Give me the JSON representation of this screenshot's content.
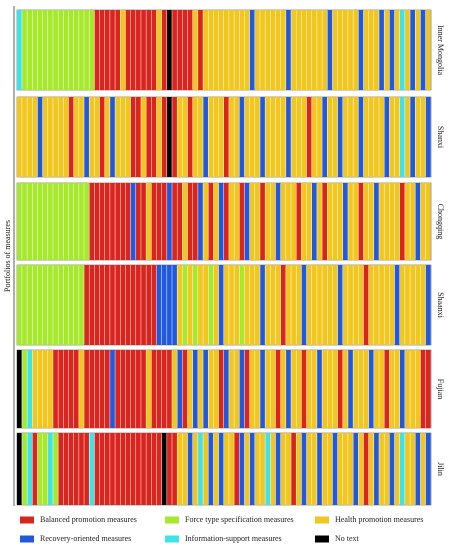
{
  "chart_data": {
    "type": "stripes",
    "y_label": "Portfolios of measures",
    "legend": [
      {
        "name": "Balanced promotion measures",
        "color": "#d9251d"
      },
      {
        "name": "Force type specification measures",
        "color": "#a6e82c"
      },
      {
        "name": "Health promotion measures",
        "color": "#f1c61e"
      },
      {
        "name": "Recovery-oriented measures",
        "color": "#2059df"
      },
      {
        "name": "Information-support measures",
        "color": "#3fe2e8"
      },
      {
        "name": "No text",
        "color": "#000000"
      }
    ],
    "panels": [
      {
        "name": "Inner Mongolia",
        "values": [
          4,
          1,
          1,
          1,
          1,
          1,
          1,
          1,
          1,
          1,
          1,
          1,
          1,
          1,
          1,
          0,
          0,
          0,
          0,
          0,
          2,
          0,
          0,
          0,
          0,
          0,
          0,
          2,
          0,
          5,
          0,
          0,
          0,
          0,
          2,
          0,
          2,
          2,
          2,
          2,
          2,
          2,
          2,
          2,
          2,
          3,
          2,
          2,
          2,
          2,
          2,
          2,
          3,
          2,
          2,
          2,
          2,
          2,
          2,
          2,
          3,
          2,
          2,
          2,
          2,
          2,
          3,
          2,
          2,
          2,
          3,
          2,
          3,
          2,
          4,
          2,
          3,
          2,
          3,
          2
        ]
      },
      {
        "name": "Shanxi",
        "values": [
          2,
          2,
          2,
          2,
          3,
          2,
          2,
          2,
          2,
          2,
          0,
          2,
          2,
          3,
          2,
          2,
          0,
          2,
          3,
          2,
          2,
          2,
          0,
          0,
          2,
          0,
          0,
          2,
          0,
          5,
          0,
          2,
          2,
          0,
          2,
          2,
          3,
          2,
          2,
          2,
          0,
          2,
          2,
          3,
          2,
          2,
          2,
          3,
          2,
          2,
          2,
          2,
          3,
          2,
          2,
          2,
          0,
          2,
          2,
          3,
          2,
          2,
          3,
          2,
          2,
          2,
          3,
          2,
          2,
          2,
          2,
          3,
          2,
          2,
          4,
          2,
          3,
          2,
          2,
          3
        ]
      },
      {
        "name": "Chongqing",
        "values": [
          1,
          1,
          1,
          1,
          1,
          1,
          1,
          1,
          1,
          1,
          1,
          1,
          1,
          1,
          0,
          0,
          0,
          0,
          0,
          0,
          0,
          0,
          3,
          0,
          0,
          2,
          0,
          0,
          0,
          3,
          0,
          0,
          2,
          0,
          0,
          3,
          2,
          0,
          2,
          3,
          0,
          2,
          2,
          0,
          3,
          2,
          2,
          0,
          2,
          2,
          3,
          2,
          2,
          2,
          0,
          2,
          2,
          3,
          2,
          0,
          2,
          2,
          2,
          3,
          2,
          2,
          0,
          2,
          2,
          3,
          2,
          2,
          2,
          2,
          0,
          2,
          2,
          3,
          2,
          2
        ]
      },
      {
        "name": "Shaanxi",
        "values": [
          1,
          1,
          1,
          1,
          1,
          1,
          1,
          1,
          1,
          1,
          1,
          1,
          1,
          0,
          0,
          0,
          0,
          0,
          0,
          0,
          0,
          0,
          0,
          0,
          0,
          0,
          0,
          3,
          3,
          3,
          3,
          2,
          1,
          2,
          1,
          2,
          2,
          1,
          2,
          3,
          2,
          2,
          2,
          1,
          2,
          2,
          2,
          3,
          2,
          2,
          2,
          0,
          2,
          2,
          2,
          3,
          2,
          2,
          2,
          2,
          2,
          2,
          3,
          2,
          2,
          2,
          2,
          0,
          2,
          2,
          2,
          2,
          2,
          3,
          2,
          2,
          2,
          2,
          2,
          3
        ]
      },
      {
        "name": "Fujian",
        "values": [
          5,
          1,
          4,
          2,
          2,
          2,
          2,
          0,
          0,
          0,
          0,
          0,
          2,
          0,
          0,
          0,
          0,
          0,
          3,
          0,
          0,
          0,
          0,
          0,
          0,
          2,
          0,
          0,
          0,
          0,
          2,
          3,
          0,
          2,
          3,
          2,
          3,
          2,
          2,
          0,
          3,
          2,
          2,
          3,
          0,
          2,
          2,
          3,
          2,
          2,
          0,
          2,
          3,
          2,
          2,
          0,
          2,
          2,
          3,
          2,
          2,
          2,
          0,
          2,
          3,
          2,
          2,
          2,
          3,
          2,
          2,
          0,
          2,
          2,
          3,
          2,
          2,
          2,
          0,
          0
        ]
      },
      {
        "name": "Jilin",
        "values": [
          5,
          1,
          4,
          0,
          1,
          1,
          4,
          1,
          0,
          0,
          0,
          0,
          0,
          0,
          4,
          0,
          0,
          0,
          0,
          0,
          0,
          0,
          0,
          0,
          0,
          0,
          0,
          0,
          5,
          0,
          0,
          2,
          2,
          3,
          2,
          4,
          2,
          3,
          2,
          3,
          2,
          2,
          0,
          3,
          2,
          3,
          2,
          2,
          4,
          2,
          3,
          2,
          2,
          0,
          2,
          3,
          2,
          2,
          3,
          2,
          2,
          3,
          2,
          2,
          2,
          3,
          2,
          0,
          2,
          3,
          2,
          2,
          3,
          2,
          4,
          2,
          2,
          3,
          2,
          3
        ]
      }
    ]
  }
}
